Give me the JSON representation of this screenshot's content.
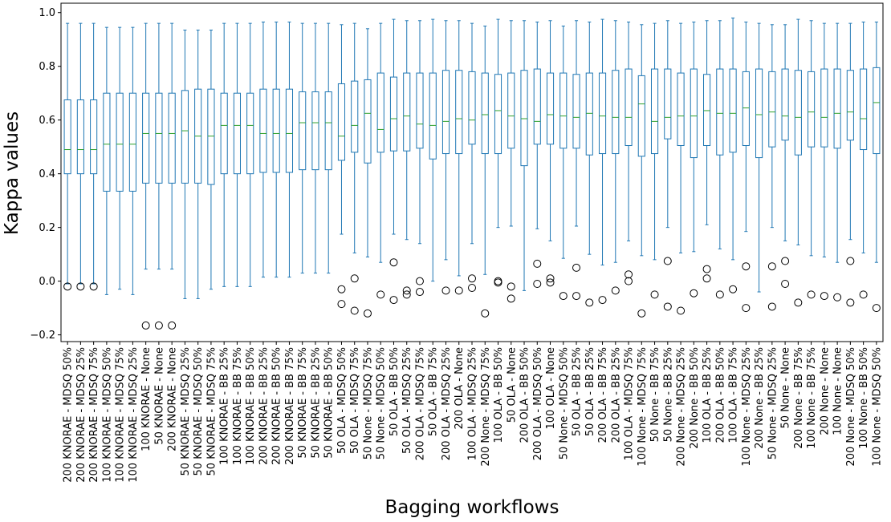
{
  "chart_data": {
    "type": "box",
    "title": "",
    "xlabel": "Bagging workflows",
    "ylabel": "Kappa values",
    "ylim": [
      -0.225,
      1.035
    ],
    "yticks": [
      -0.2,
      0.0,
      0.2,
      0.4,
      0.6,
      0.8,
      1.0
    ],
    "ytick_labels": [
      "−0.2",
      "0.0",
      "0.2",
      "0.4",
      "0.6",
      "0.8",
      "1.0"
    ],
    "grid": false,
    "box_color": "#1f77b4",
    "median_color": "#2ca02c",
    "boxes": [
      {
        "label": "200 KNORAE - MDSQ 50%",
        "whislo": -0.01,
        "q1": 0.4,
        "med": 0.49,
        "q3": 0.675,
        "whishi": 0.96,
        "fliers": [
          -0.02
        ]
      },
      {
        "label": "200 KNORAE - MDSQ 25%",
        "whislo": -0.01,
        "q1": 0.4,
        "med": 0.49,
        "q3": 0.675,
        "whishi": 0.96,
        "fliers": [
          -0.02
        ]
      },
      {
        "label": "200 KNORAE - MDSQ 75%",
        "whislo": -0.01,
        "q1": 0.4,
        "med": 0.49,
        "q3": 0.675,
        "whishi": 0.96,
        "fliers": [
          -0.02
        ]
      },
      {
        "label": "100 KNORAE - MDSQ 50%",
        "whislo": -0.05,
        "q1": 0.335,
        "med": 0.51,
        "q3": 0.7,
        "whishi": 0.945,
        "fliers": []
      },
      {
        "label": "100 KNORAE - MDSQ 75%",
        "whislo": -0.03,
        "q1": 0.335,
        "med": 0.51,
        "q3": 0.7,
        "whishi": 0.945,
        "fliers": []
      },
      {
        "label": "100 KNORAE - MDSQ 25%",
        "whislo": -0.05,
        "q1": 0.335,
        "med": 0.51,
        "q3": 0.7,
        "whishi": 0.945,
        "fliers": []
      },
      {
        "label": "100 KNORAE - None",
        "whislo": 0.045,
        "q1": 0.365,
        "med": 0.55,
        "q3": 0.7,
        "whishi": 0.96,
        "fliers": [
          -0.165
        ]
      },
      {
        "label": "50 KNORAE - None",
        "whislo": 0.045,
        "q1": 0.365,
        "med": 0.55,
        "q3": 0.7,
        "whishi": 0.96,
        "fliers": [
          -0.165
        ]
      },
      {
        "label": "200 KNORAE - None",
        "whislo": 0.045,
        "q1": 0.365,
        "med": 0.55,
        "q3": 0.7,
        "whishi": 0.96,
        "fliers": [
          -0.165
        ]
      },
      {
        "label": "50 KNORAE - MDSQ 25%",
        "whislo": -0.065,
        "q1": 0.365,
        "med": 0.56,
        "q3": 0.71,
        "whishi": 0.935,
        "fliers": []
      },
      {
        "label": "50 KNORAE - MDSQ 50%",
        "whislo": -0.065,
        "q1": 0.365,
        "med": 0.54,
        "q3": 0.715,
        "whishi": 0.935,
        "fliers": []
      },
      {
        "label": "50 KNORAE - MDSQ 75%",
        "whislo": -0.03,
        "q1": 0.36,
        "med": 0.54,
        "q3": 0.715,
        "whishi": 0.935,
        "fliers": []
      },
      {
        "label": "100 KNORAE - BB 25%",
        "whislo": -0.02,
        "q1": 0.4,
        "med": 0.58,
        "q3": 0.7,
        "whishi": 0.96,
        "fliers": []
      },
      {
        "label": "100 KNORAE - BB 75%",
        "whislo": -0.02,
        "q1": 0.4,
        "med": 0.58,
        "q3": 0.7,
        "whishi": 0.96,
        "fliers": []
      },
      {
        "label": "100 KNORAE - BB 50%",
        "whislo": -0.02,
        "q1": 0.4,
        "med": 0.58,
        "q3": 0.7,
        "whishi": 0.96,
        "fliers": []
      },
      {
        "label": "200 KNORAE - BB 25%",
        "whislo": 0.015,
        "q1": 0.405,
        "med": 0.55,
        "q3": 0.715,
        "whishi": 0.965,
        "fliers": []
      },
      {
        "label": "200 KNORAE - BB 50%",
        "whislo": 0.015,
        "q1": 0.405,
        "med": 0.55,
        "q3": 0.715,
        "whishi": 0.965,
        "fliers": []
      },
      {
        "label": "200 KNORAE - BB 75%",
        "whislo": 0.015,
        "q1": 0.405,
        "med": 0.55,
        "q3": 0.715,
        "whishi": 0.965,
        "fliers": []
      },
      {
        "label": "50 KNORAE - BB 75%",
        "whislo": 0.03,
        "q1": 0.415,
        "med": 0.59,
        "q3": 0.705,
        "whishi": 0.96,
        "fliers": []
      },
      {
        "label": "50 KNORAE - BB 25%",
        "whislo": 0.03,
        "q1": 0.415,
        "med": 0.59,
        "q3": 0.705,
        "whishi": 0.96,
        "fliers": []
      },
      {
        "label": "50 KNORAE - BB 50%",
        "whislo": 0.03,
        "q1": 0.415,
        "med": 0.59,
        "q3": 0.705,
        "whishi": 0.96,
        "fliers": []
      },
      {
        "label": "50 OLA - MDSQ 50%",
        "whislo": 0.175,
        "q1": 0.45,
        "med": 0.54,
        "q3": 0.735,
        "whishi": 0.955,
        "fliers": [
          -0.03,
          -0.085
        ]
      },
      {
        "label": "50 OLA - MDSQ 75%",
        "whislo": 0.105,
        "q1": 0.48,
        "med": 0.58,
        "q3": 0.745,
        "whishi": 0.96,
        "fliers": [
          0.01,
          -0.11
        ]
      },
      {
        "label": "50 None - MDSQ 75%",
        "whislo": 0.09,
        "q1": 0.44,
        "med": 0.625,
        "q3": 0.75,
        "whishi": 0.94,
        "fliers": [
          -0.12
        ]
      },
      {
        "label": "50 None - MDSQ 50%",
        "whislo": 0.07,
        "q1": 0.48,
        "med": 0.565,
        "q3": 0.775,
        "whishi": 0.96,
        "fliers": [
          -0.05
        ]
      },
      {
        "label": "50 OLA - BB 50%",
        "whislo": 0.175,
        "q1": 0.485,
        "med": 0.605,
        "q3": 0.76,
        "whishi": 0.975,
        "fliers": [
          0.07,
          -0.07
        ]
      },
      {
        "label": "50 OLA - MDSQ 25%",
        "whislo": 0.155,
        "q1": 0.485,
        "med": 0.615,
        "q3": 0.775,
        "whishi": 0.97,
        "fliers": [
          -0.035,
          -0.05
        ]
      },
      {
        "label": "200 OLA - MDSQ 75%",
        "whislo": 0.14,
        "q1": 0.495,
        "med": 0.585,
        "q3": 0.775,
        "whishi": 0.97,
        "fliers": [
          0.0,
          -0.04
        ]
      },
      {
        "label": "50 OLA - BB 75%",
        "whislo": 0.0,
        "q1": 0.455,
        "med": 0.58,
        "q3": 0.775,
        "whishi": 0.975,
        "fliers": []
      },
      {
        "label": "200 OLA - MDSQ 25%",
        "whislo": 0.08,
        "q1": 0.475,
        "med": 0.595,
        "q3": 0.785,
        "whishi": 0.97,
        "fliers": [
          -0.035
        ]
      },
      {
        "label": "200 OLA - None",
        "whislo": 0.02,
        "q1": 0.475,
        "med": 0.605,
        "q3": 0.785,
        "whishi": 0.97,
        "fliers": [
          -0.035
        ]
      },
      {
        "label": "100 OLA - MDSQ 25%",
        "whislo": 0.14,
        "q1": 0.51,
        "med": 0.6,
        "q3": 0.78,
        "whishi": 0.96,
        "fliers": [
          0.01,
          -0.025
        ]
      },
      {
        "label": "200 None - MDSQ 75%",
        "whislo": 0.025,
        "q1": 0.475,
        "med": 0.62,
        "q3": 0.775,
        "whishi": 0.95,
        "fliers": [
          -0.12
        ]
      },
      {
        "label": "100 OLA - BB 50%",
        "whislo": 0.2,
        "q1": 0.475,
        "med": 0.635,
        "q3": 0.77,
        "whishi": 0.975,
        "fliers": [
          0.0,
          -0.005
        ]
      },
      {
        "label": "50 OLA - None",
        "whislo": 0.205,
        "q1": 0.495,
        "med": 0.615,
        "q3": 0.775,
        "whishi": 0.97,
        "fliers": [
          -0.02,
          -0.065
        ]
      },
      {
        "label": "200 OLA - BB 50%",
        "whislo": -0.035,
        "q1": 0.43,
        "med": 0.605,
        "q3": 0.785,
        "whishi": 0.97,
        "fliers": []
      },
      {
        "label": "200 OLA - MDSQ 50%",
        "whislo": 0.195,
        "q1": 0.51,
        "med": 0.595,
        "q3": 0.79,
        "whishi": 0.965,
        "fliers": [
          0.065,
          -0.01
        ]
      },
      {
        "label": "100 OLA - None",
        "whislo": 0.15,
        "q1": 0.51,
        "med": 0.62,
        "q3": 0.775,
        "whishi": 0.97,
        "fliers": [
          0.01,
          -0.005
        ]
      },
      {
        "label": "50 None - MDSQ 50%",
        "whislo": 0.085,
        "q1": 0.495,
        "med": 0.615,
        "q3": 0.775,
        "whishi": 0.95,
        "fliers": [
          -0.055
        ]
      },
      {
        "label": "50 OLA - BB 25%",
        "whislo": 0.205,
        "q1": 0.495,
        "med": 0.61,
        "q3": 0.77,
        "whishi": 0.97,
        "fliers": [
          0.05,
          -0.055
        ]
      },
      {
        "label": "50 OLA - BB 25%",
        "whislo": 0.1,
        "q1": 0.47,
        "med": 0.625,
        "q3": 0.775,
        "whishi": 0.965,
        "fliers": [
          -0.08
        ]
      },
      {
        "label": "200 OLA - BB 75%",
        "whislo": 0.06,
        "q1": 0.475,
        "med": 0.615,
        "q3": 0.775,
        "whishi": 0.975,
        "fliers": [
          -0.07
        ]
      },
      {
        "label": "200 OLA - BB 25%",
        "whislo": 0.07,
        "q1": 0.475,
        "med": 0.61,
        "q3": 0.785,
        "whishi": 0.97,
        "fliers": [
          -0.035
        ]
      },
      {
        "label": "100 OLA - MDSQ 75%",
        "whislo": 0.15,
        "q1": 0.505,
        "med": 0.61,
        "q3": 0.79,
        "whishi": 0.965,
        "fliers": [
          0.025,
          0.0
        ]
      },
      {
        "label": "100 None - MDSQ 75%",
        "whislo": 0.095,
        "q1": 0.465,
        "med": 0.66,
        "q3": 0.765,
        "whishi": 0.955,
        "fliers": [
          -0.12
        ]
      },
      {
        "label": "50 None - BB 75%",
        "whislo": 0.08,
        "q1": 0.475,
        "med": 0.595,
        "q3": 0.79,
        "whishi": 0.96,
        "fliers": [
          -0.05
        ]
      },
      {
        "label": "50 None - BB 25%",
        "whislo": 0.2,
        "q1": 0.53,
        "med": 0.61,
        "q3": 0.79,
        "whishi": 0.97,
        "fliers": [
          0.075,
          -0.095
        ]
      },
      {
        "label": "200 None - MDSQ 25%",
        "whislo": 0.105,
        "q1": 0.505,
        "med": 0.615,
        "q3": 0.775,
        "whishi": 0.96,
        "fliers": [
          -0.11
        ]
      },
      {
        "label": "200 None - BB 50%",
        "whislo": 0.11,
        "q1": 0.46,
        "med": 0.615,
        "q3": 0.79,
        "whishi": 0.965,
        "fliers": [
          -0.045
        ]
      },
      {
        "label": "100 OLA - BB 25%",
        "whislo": 0.21,
        "q1": 0.505,
        "med": 0.635,
        "q3": 0.77,
        "whishi": 0.97,
        "fliers": [
          0.045,
          0.01
        ]
      },
      {
        "label": "200 OLA - BB 50%",
        "whislo": 0.12,
        "q1": 0.47,
        "med": 0.625,
        "q3": 0.79,
        "whishi": 0.97,
        "fliers": [
          -0.05
        ]
      },
      {
        "label": "100 OLA - BB 75%",
        "whislo": 0.08,
        "q1": 0.48,
        "med": 0.625,
        "q3": 0.79,
        "whishi": 0.98,
        "fliers": [
          -0.03
        ]
      },
      {
        "label": "100 None - MDSQ 25%",
        "whislo": 0.185,
        "q1": 0.505,
        "med": 0.645,
        "q3": 0.78,
        "whishi": 0.965,
        "fliers": [
          0.055,
          -0.1
        ]
      },
      {
        "label": "200 None - BB 25%",
        "whislo": -0.04,
        "q1": 0.46,
        "med": 0.62,
        "q3": 0.79,
        "whishi": 0.96,
        "fliers": []
      },
      {
        "label": "50 None - MDSQ 25%",
        "whislo": 0.2,
        "q1": 0.5,
        "med": 0.63,
        "q3": 0.78,
        "whishi": 0.955,
        "fliers": [
          0.055,
          -0.095
        ]
      },
      {
        "label": "50 None - None",
        "whislo": 0.15,
        "q1": 0.525,
        "med": 0.615,
        "q3": 0.79,
        "whishi": 0.955,
        "fliers": [
          0.075,
          -0.01
        ]
      },
      {
        "label": "200 None - BB 75%",
        "whislo": 0.135,
        "q1": 0.47,
        "med": 0.61,
        "q3": 0.785,
        "whishi": 0.975,
        "fliers": [
          -0.08
        ]
      },
      {
        "label": "100 None - BB 75%",
        "whislo": 0.095,
        "q1": 0.5,
        "med": 0.63,
        "q3": 0.78,
        "whishi": 0.97,
        "fliers": [
          -0.05
        ]
      },
      {
        "label": "200 None - None",
        "whislo": 0.09,
        "q1": 0.5,
        "med": 0.61,
        "q3": 0.79,
        "whishi": 0.96,
        "fliers": [
          -0.055
        ]
      },
      {
        "label": "100 None - None",
        "whislo": 0.07,
        "q1": 0.495,
        "med": 0.625,
        "q3": 0.79,
        "whishi": 0.96,
        "fliers": [
          -0.06
        ]
      },
      {
        "label": "200 None - MDSQ 50%",
        "whislo": 0.155,
        "q1": 0.525,
        "med": 0.63,
        "q3": 0.785,
        "whishi": 0.96,
        "fliers": [
          0.075,
          -0.08
        ]
      },
      {
        "label": "100 None - BB 50%",
        "whislo": 0.105,
        "q1": 0.49,
        "med": 0.605,
        "q3": 0.79,
        "whishi": 0.965,
        "fliers": [
          -0.05
        ]
      },
      {
        "label": "100 None - MDSQ 50%",
        "whislo": 0.07,
        "q1": 0.475,
        "med": 0.665,
        "q3": 0.795,
        "whishi": 0.965,
        "fliers": [
          -0.1
        ]
      }
    ]
  }
}
